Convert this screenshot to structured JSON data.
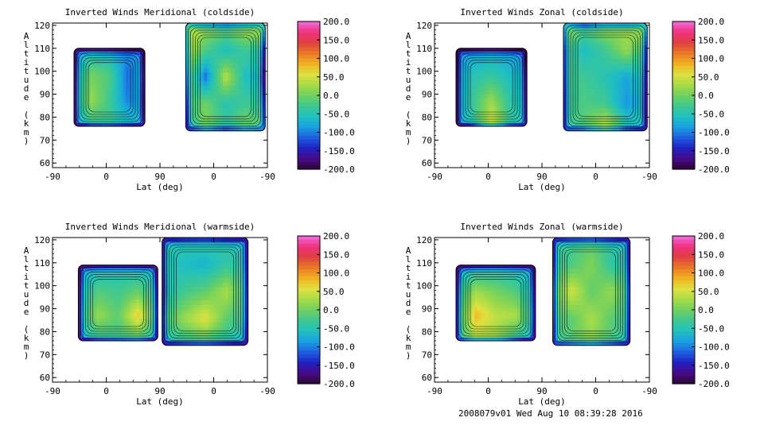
{
  "footer_text": "2008079v01 Wed Aug 10 08:39:28 2016",
  "colors": {
    "scale": [
      "#2a0530",
      "#4a0a8a",
      "#2020c0",
      "#1e60e0",
      "#1aa0e0",
      "#20c0c0",
      "#40c890",
      "#70d060",
      "#a8dc48",
      "#e0e040",
      "#f0b020",
      "#e87828",
      "#e04040",
      "#f03080",
      "#f070e0"
    ]
  },
  "chart_data": [
    {
      "type": "heatmap",
      "title": "Inverted Winds Meridional (coldside)",
      "xlabel": "Lat (deg)",
      "ylabel": "Altitude (km)",
      "x_tick_labels": [
        "-90",
        "0",
        "90",
        "0",
        "-90"
      ],
      "y_ticks": [
        60,
        70,
        80,
        90,
        100,
        110,
        120
      ],
      "ylim": [
        58,
        121
      ],
      "colorbar": {
        "min": -200,
        "max": 200,
        "labels": [
          "200.0",
          "150.0",
          "100.0",
          "50.0",
          "0.0",
          "-50.0",
          "-100.0",
          "-150.0",
          "-200.0"
        ]
      },
      "rows_km": [
        80,
        90,
        100,
        110,
        120
      ],
      "left_block": {
        "x_frac_range": [
          0.1,
          0.43
        ],
        "alt_range": [
          76,
          110
        ],
        "values": [
          [
            -80,
            -40,
            -30,
            -50,
            -70
          ],
          [
            -70,
            20,
            -30,
            -100,
            -80
          ],
          [
            -80,
            0,
            -20,
            -110,
            -70
          ],
          [
            -90,
            -70,
            -80,
            -90,
            -100
          ]
        ]
      },
      "right_block": {
        "x_frac_range": [
          0.62,
          0.99
        ],
        "alt_range": [
          74,
          121
        ],
        "values": [
          [
            -60,
            10,
            -30,
            10,
            -10
          ],
          [
            -30,
            0,
            -50,
            -30,
            -40
          ],
          [
            10,
            -110,
            40,
            -60,
            -70
          ],
          [
            40,
            -20,
            -60,
            -30,
            -50
          ],
          [
            60,
            30,
            10,
            40,
            60
          ]
        ]
      }
    },
    {
      "type": "heatmap",
      "title": "Inverted Winds Zonal (coldside)",
      "xlabel": "Lat (deg)",
      "ylabel": "Altitude (km)",
      "x_tick_labels": [
        "-90",
        "0",
        "90",
        "0",
        "-90"
      ],
      "y_ticks": [
        60,
        70,
        80,
        90,
        100,
        110,
        120
      ],
      "ylim": [
        58,
        121
      ],
      "colorbar": {
        "min": -200,
        "max": 200,
        "labels": [
          "200.0",
          "150.0",
          "100.0",
          "50.0",
          "0.0",
          "-50.0",
          "-100.0",
          "-150.0",
          "-200.0"
        ]
      },
      "rows_km": [
        80,
        90,
        100,
        110,
        120
      ],
      "left_block": {
        "x_frac_range": [
          0.1,
          0.43
        ],
        "alt_range": [
          76,
          110
        ],
        "values": [
          [
            -90,
            -40,
            60,
            -30,
            -60
          ],
          [
            -90,
            -30,
            20,
            -40,
            -70
          ],
          [
            -90,
            -50,
            -40,
            -60,
            -80
          ],
          [
            -100,
            -90,
            -80,
            -90,
            -110
          ]
        ]
      },
      "right_block": {
        "x_frac_range": [
          0.6,
          0.99
        ],
        "alt_range": [
          74,
          121
        ],
        "values": [
          [
            -40,
            -10,
            70,
            -30,
            -60
          ],
          [
            -40,
            -20,
            -30,
            -90,
            -60
          ],
          [
            -30,
            -30,
            -50,
            -80,
            -50
          ],
          [
            -20,
            -60,
            -30,
            20,
            -40
          ],
          [
            40,
            -10,
            30,
            20,
            50
          ]
        ]
      }
    },
    {
      "type": "heatmap",
      "title": "Inverted Winds Meridional (warmside)",
      "xlabel": "Lat (deg)",
      "ylabel": "Altitude (km)",
      "x_tick_labels": [
        "-90",
        "0",
        "90",
        "0",
        "-90"
      ],
      "y_ticks": [
        60,
        70,
        80,
        90,
        100,
        110,
        120
      ],
      "ylim": [
        58,
        121
      ],
      "colorbar": {
        "min": -200,
        "max": 200,
        "labels": [
          "200.0",
          "150.0",
          "100.0",
          "50.0",
          "0.0",
          "-50.0",
          "-100.0",
          "-150.0",
          "-200.0"
        ]
      },
      "rows_km": [
        80,
        90,
        100,
        110,
        120
      ],
      "left_block": {
        "x_frac_range": [
          0.12,
          0.49
        ],
        "alt_range": [
          76,
          109
        ],
        "values": [
          [
            -70,
            -40,
            -30,
            -20,
            -60
          ],
          [
            -60,
            20,
            -10,
            70,
            -40
          ],
          [
            -70,
            -20,
            -30,
            -10,
            -50
          ],
          [
            -90,
            -70,
            -60,
            -70,
            -80
          ]
        ]
      },
      "right_block": {
        "x_frac_range": [
          0.51,
          0.91
        ],
        "alt_range": [
          74,
          121
        ],
        "values": [
          [
            -60,
            -40,
            -30,
            -50,
            -70
          ],
          [
            -40,
            20,
            60,
            -10,
            -40
          ],
          [
            -60,
            -30,
            -10,
            30,
            -40
          ],
          [
            -40,
            -60,
            -70,
            -40,
            -50
          ],
          [
            -60,
            -40,
            -30,
            -50,
            -60
          ]
        ]
      }
    },
    {
      "type": "heatmap",
      "title": "Inverted Winds Zonal (warmside)",
      "xlabel": "Lat (deg)",
      "ylabel": "Altitude (km)",
      "x_tick_labels": [
        "-90",
        "0",
        "90",
        "0",
        "-90"
      ],
      "y_ticks": [
        60,
        70,
        80,
        90,
        100,
        110,
        120
      ],
      "ylim": [
        58,
        121
      ],
      "colorbar": {
        "min": -200,
        "max": 200,
        "labels": [
          "200.0",
          "150.0",
          "100.0",
          "50.0",
          "0.0",
          "-50.0",
          "-100.0",
          "-150.0",
          "-200.0"
        ]
      },
      "rows_km": [
        80,
        90,
        100,
        110,
        120
      ],
      "left_block": {
        "x_frac_range": [
          0.1,
          0.47
        ],
        "alt_range": [
          76,
          109
        ],
        "values": [
          [
            -60,
            30,
            20,
            -40,
            -70
          ],
          [
            -50,
            80,
            40,
            30,
            -60
          ],
          [
            -60,
            20,
            0,
            -20,
            -70
          ],
          [
            -90,
            -70,
            -60,
            -70,
            -90
          ]
        ]
      },
      "right_block": {
        "x_frac_range": [
          0.55,
          0.91
        ],
        "alt_range": [
          74,
          121
        ],
        "values": [
          [
            -40,
            -10,
            10,
            -20,
            -60
          ],
          [
            -30,
            -10,
            30,
            -10,
            -40
          ],
          [
            -20,
            50,
            -10,
            20,
            -30
          ],
          [
            -40,
            -20,
            10,
            -40,
            -50
          ],
          [
            -50,
            -30,
            -20,
            -40,
            -60
          ]
        ]
      }
    }
  ]
}
